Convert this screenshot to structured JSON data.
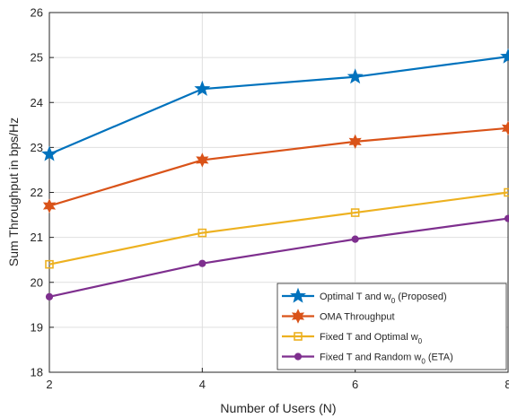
{
  "chart_data": {
    "type": "line",
    "xlabel": "Number of Users (N)",
    "ylabel": "Sum Throughput in bps/Hz",
    "x": [
      2,
      4,
      6,
      8
    ],
    "xlim": [
      2,
      8
    ],
    "ylim": [
      18,
      26
    ],
    "xticks": [
      "2",
      "4",
      "6",
      "8"
    ],
    "yticks": [
      "18",
      "19",
      "20",
      "21",
      "22",
      "23",
      "24",
      "25",
      "26"
    ],
    "grid": true,
    "legend_position": "bottom-right",
    "series": [
      {
        "name": "Optimal T and w_0 (Proposed)",
        "label_main": "Optimal T and w",
        "label_sub": "0",
        "label_tail": " (Proposed)",
        "values": [
          22.85,
          24.3,
          24.57,
          25.02
        ],
        "color": "#0072BD",
        "marker": "star"
      },
      {
        "name": "OMA Throughput",
        "label_main": "OMA Throughput",
        "label_sub": "",
        "label_tail": "",
        "values": [
          21.7,
          22.72,
          23.13,
          23.43
        ],
        "color": "#D95319",
        "marker": "hexagram"
      },
      {
        "name": "Fixed T and Optimal w_0",
        "label_main": "Fixed T and Optimal w",
        "label_sub": "0",
        "label_tail": "",
        "values": [
          20.4,
          21.1,
          21.55,
          22.0
        ],
        "color": "#EDB120",
        "marker": "square"
      },
      {
        "name": "Fixed T and Random w_0 (ETA)",
        "label_main": "Fixed T and Random w",
        "label_sub": "0",
        "label_tail": " (ETA)",
        "values": [
          19.68,
          20.42,
          20.96,
          21.42
        ],
        "color": "#7E2F8E",
        "marker": "circle"
      }
    ]
  }
}
